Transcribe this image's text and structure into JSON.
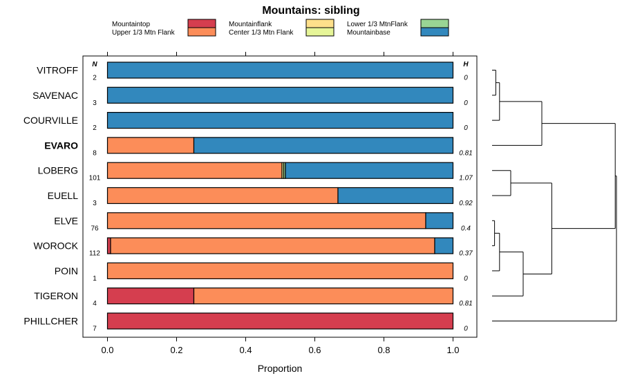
{
  "chart_data": {
    "type": "bar",
    "orientation": "horizontal-stacked",
    "title": "Mountains: sibling",
    "xlabel": "Proportion",
    "ylabel": "",
    "xlim": [
      0,
      1
    ],
    "xticks": [
      0.0,
      0.2,
      0.4,
      0.6,
      0.8,
      1.0
    ],
    "xtick_labels": [
      "0.0",
      "0.2",
      "0.4",
      "0.6",
      "0.8",
      "1.0"
    ],
    "n_header": "N",
    "h_header": "H",
    "categories": [
      "VITROFF",
      "SAVENAC",
      "COURVILLE",
      "EVARO",
      "LOBERG",
      "EUELL",
      "ELVE",
      "WOROCK",
      "POIN",
      "TIGERON",
      "PHILLCHER"
    ],
    "highlight_category": "EVARO",
    "n": [
      "2",
      "3",
      "2",
      "8",
      "101",
      "3",
      "76",
      "112",
      "1",
      "4",
      "7"
    ],
    "h": [
      "0",
      "0",
      "0",
      "0.81",
      "1.07",
      "0.92",
      "0.4",
      "0.37",
      "0",
      "0.81",
      "0"
    ],
    "series": [
      {
        "name": "Mountaintop",
        "color": "#d53e4f",
        "values": [
          0,
          0,
          0,
          0,
          0,
          0,
          0,
          0.009,
          0,
          0.25,
          1.0
        ]
      },
      {
        "name": "Upper 1/3 Mtn Flank",
        "color": "#fc8d59",
        "values": [
          0,
          0,
          0,
          0.25,
          0.505,
          0.667,
          0.921,
          0.938,
          1.0,
          0.75,
          0
        ]
      },
      {
        "name": "Mountainflank",
        "color": "#fee08b",
        "values": [
          0,
          0,
          0,
          0,
          0,
          0,
          0,
          0,
          0,
          0,
          0
        ]
      },
      {
        "name": "Center 1/3 Mtn Flank",
        "color": "#e6f598",
        "values": [
          0,
          0,
          0,
          0,
          0.005,
          0,
          0,
          0,
          0,
          0,
          0
        ]
      },
      {
        "name": "Lower 1/3 MtnFlank",
        "color": "#99d594",
        "values": [
          0,
          0,
          0,
          0,
          0.005,
          0,
          0,
          0,
          0,
          0,
          0
        ]
      },
      {
        "name": "Mountainbase",
        "color": "#3288bd",
        "values": [
          1.0,
          1.0,
          1.0,
          0.75,
          0.485,
          0.333,
          0.079,
          0.053,
          0,
          0,
          0
        ]
      }
    ],
    "legend_order": [
      "Mountaintop",
      "Upper 1/3 Mtn Flank",
      "Mountainflank",
      "Center 1/3 Mtn Flank",
      "Lower 1/3 MtnFlank",
      "Mountainbase"
    ],
    "legend_position": "top",
    "grid": false,
    "dendrogram": {
      "position": "right",
      "merges": [
        {
          "a": 0,
          "b": 1,
          "height": 0.03
        },
        {
          "a": 11,
          "b": 2,
          "height": 0.06
        },
        {
          "a": 12,
          "b": 3,
          "height": 0.4
        },
        {
          "a": 4,
          "b": 5,
          "height": 0.15
        },
        {
          "a": 6,
          "b": 7,
          "height": 0.02
        },
        {
          "a": 15,
          "b": 8,
          "height": 0.06
        },
        {
          "a": 16,
          "b": 9,
          "height": 0.25
        },
        {
          "a": 14,
          "b": 17,
          "height": 0.48
        },
        {
          "a": 13,
          "b": 18,
          "height": 0.99
        },
        {
          "a": 19,
          "b": 10,
          "height": 1.0
        }
      ]
    }
  }
}
